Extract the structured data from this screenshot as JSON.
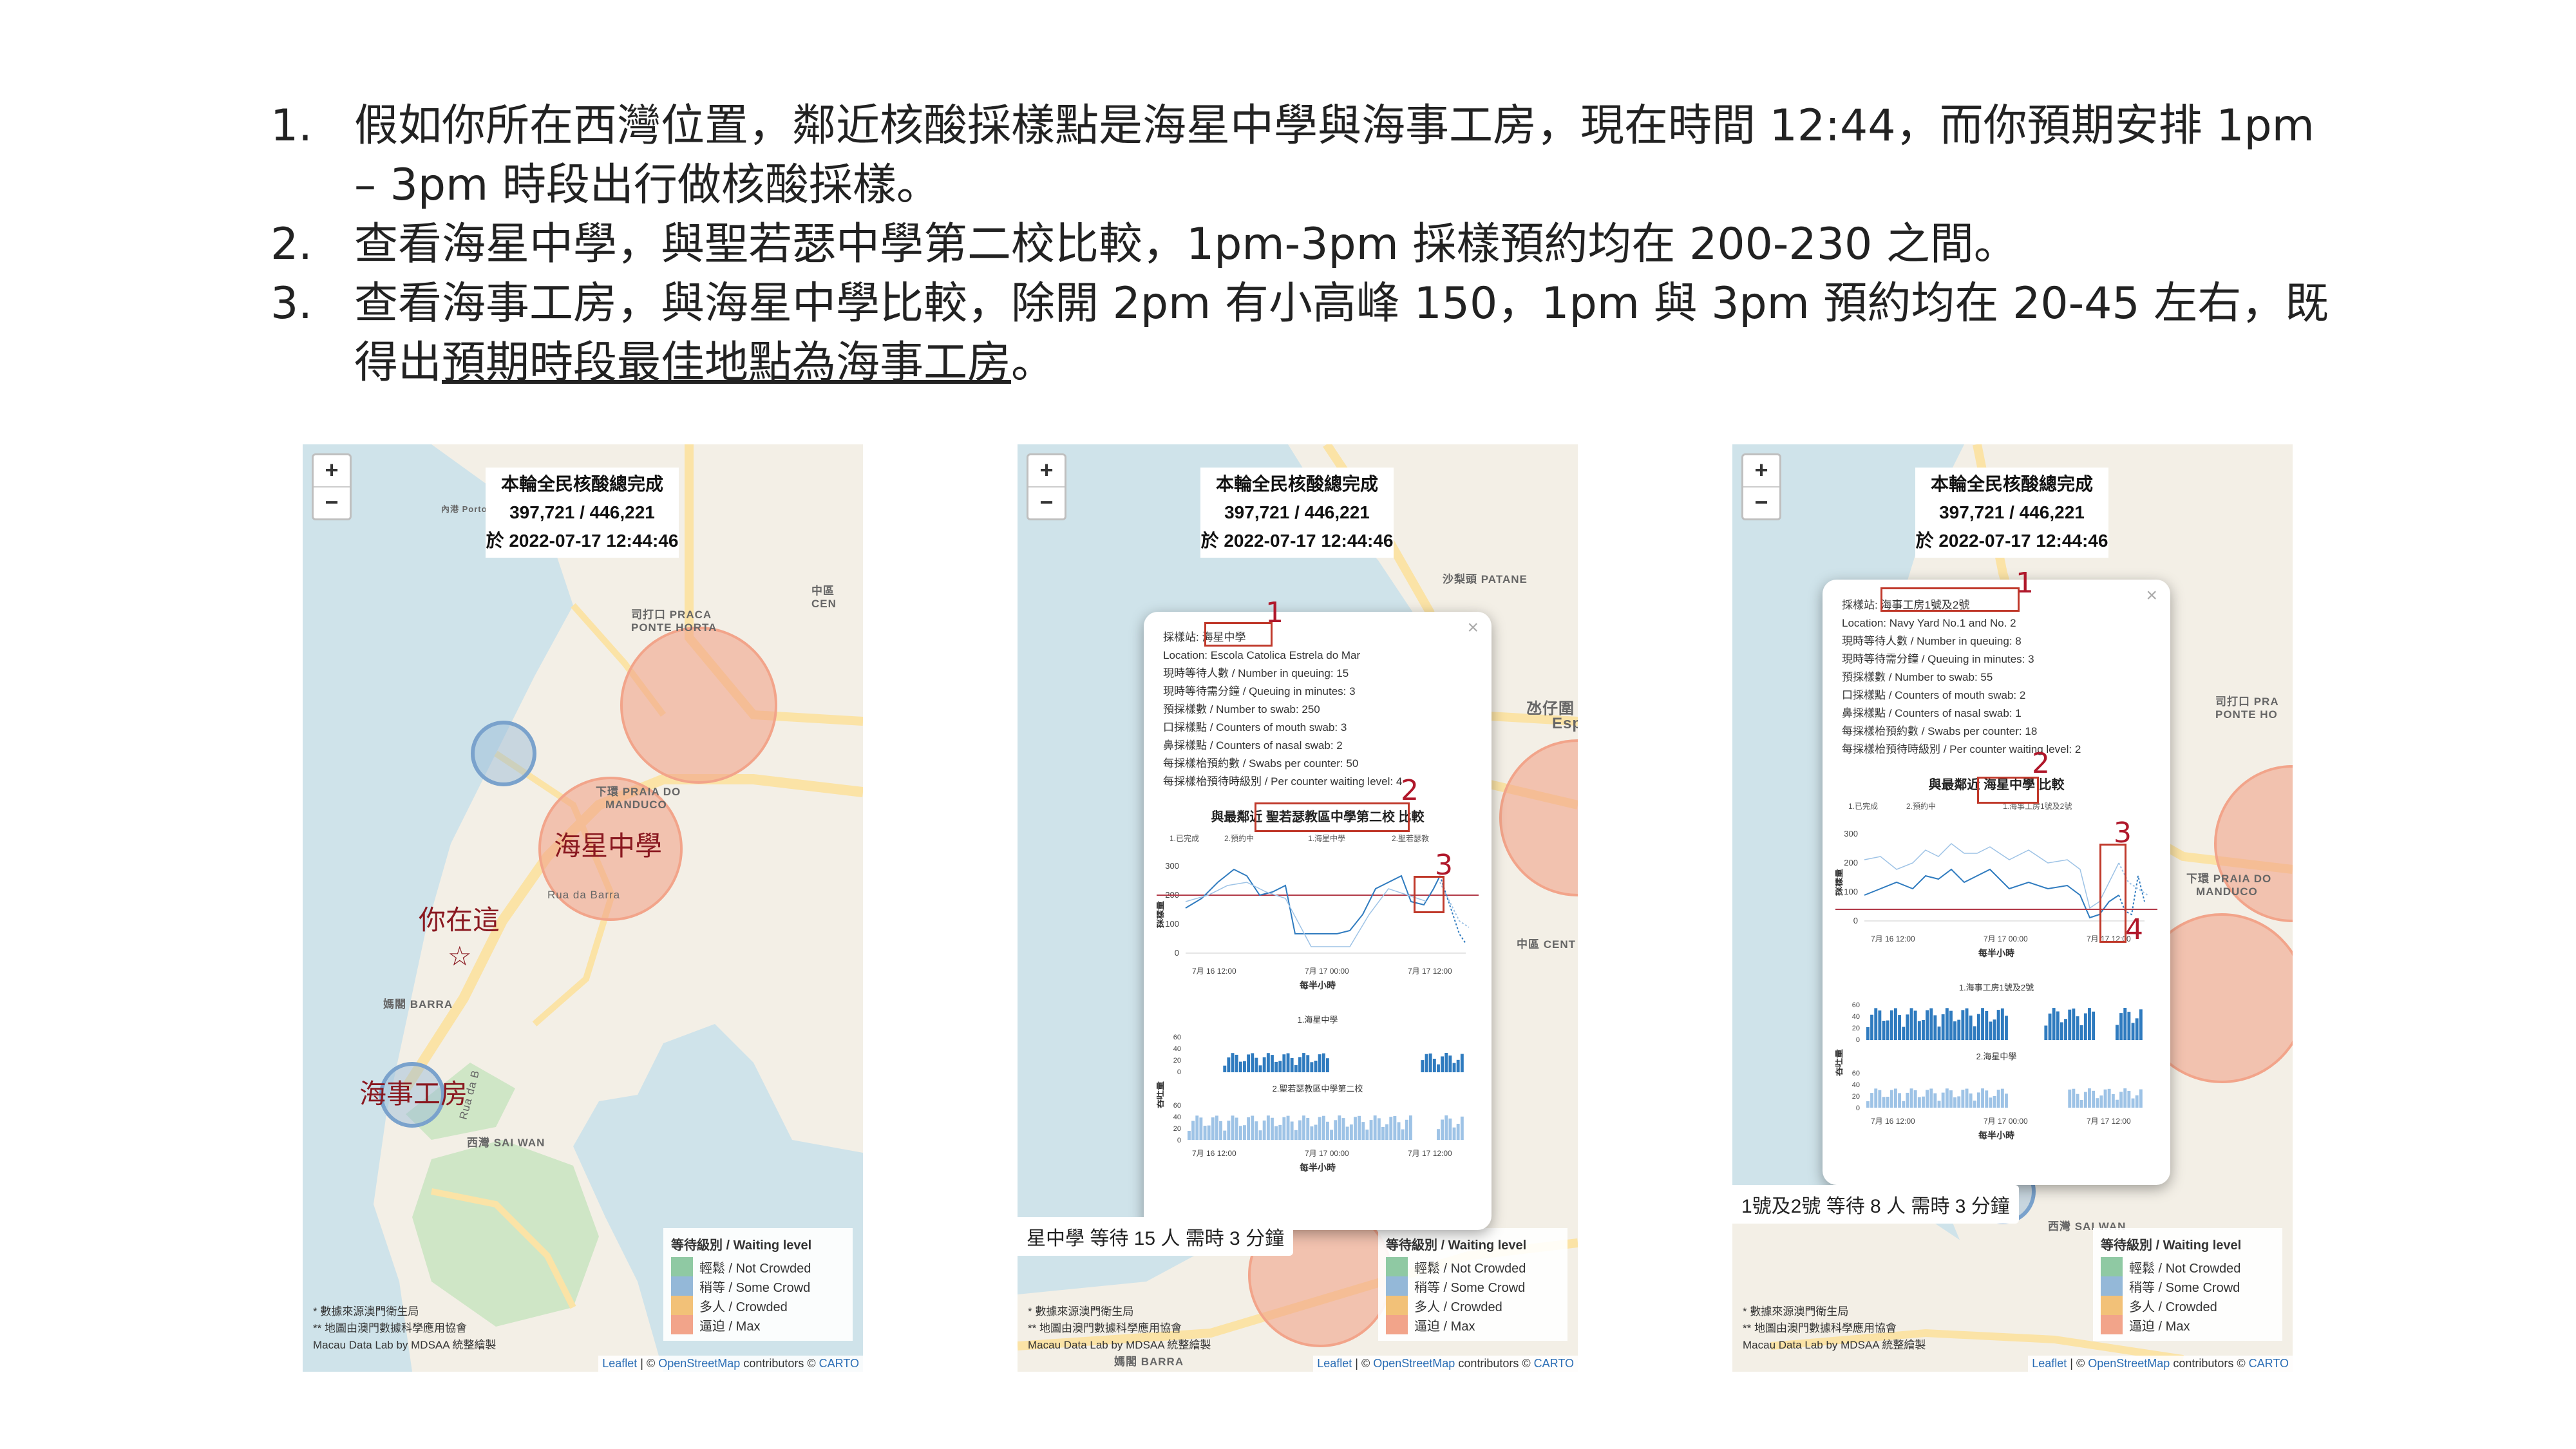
{
  "steps": [
    {
      "num": "1.",
      "text": "假如你所在西灣位置，鄰近核酸採樣點是海星中學與海事工房，現在時間 12:44，而你預期安排 1pm – 3pm 時段出行做核酸採樣。",
      "underlined": ""
    },
    {
      "num": "2.",
      "text": "查看海星中學，與聖若瑟中學第二校比較，1pm-3pm 採樣預約均在 200-230 之間。",
      "underlined": ""
    },
    {
      "num": "3.",
      "text": "查看海事工房，與海星中學比較，除開 2pm 有小高峰 150，1pm 與 3pm 預約均在 20-45 左右，既得出",
      "underlined": "預期時段最佳地點為海事工房",
      "tail": "。"
    }
  ],
  "map": {
    "zoom_in": "+",
    "zoom_out": "−",
    "total_title": "本輪全民核酸總完成",
    "total_value": "397,721 / 446,221",
    "total_time": "於 2022-07-17 12:44:46",
    "legend_title": "等待級別 / Waiting level",
    "legend_items": [
      {
        "label": "輕鬆 / Not Crowded",
        "color": "#8fc9a3"
      },
      {
        "label": "稍等 / Some Crowd",
        "color": "#94b8d8"
      },
      {
        "label": "多人 / Crowded",
        "color": "#f2c178"
      },
      {
        "label": "逼迫 / Max",
        "color": "#f2a48a"
      }
    ],
    "credits": [
      "* 數據來源澳門衛生局",
      "** 地圖由澳門數據科學應用協會",
      "Macau Data Lab by MDSAA 統整繪製"
    ],
    "attrib_leaflet": "Leaflet",
    "attrib_mid": " | © ",
    "attrib_osm": "OpenStreetMap",
    "attrib_contrib": " contributors © ",
    "attrib_carto": "CARTO",
    "colors": {
      "water": "#cfe3ea",
      "land": "#f3efe6",
      "road": "#fbe3a6",
      "green": "#cfe6c6",
      "crowded": "#f2a48a",
      "some": "#94b8d8"
    }
  },
  "panel1": {
    "labels": {
      "inner_harbour": "內港 Porto",
      "praca": "司打口 PRACA",
      "ponte": "PONTE HORTA",
      "praia": "下環 PRAIA DO",
      "manduco": "MANDUCO",
      "barra": "媽閣 BARRA",
      "saiwan": "西灣 SAI WAN",
      "centro": "中區 CEN",
      "rua": "Rua da Barra",
      "rua2": "Rua da B"
    },
    "school": "海星中學",
    "you": "你在這",
    "star": "☆",
    "navy": "海事工房"
  },
  "panel2": {
    "labels": {
      "patane": "沙梨頭 PATANE",
      "taipa": "氹仔圍",
      "esp": "Esp",
      "centro": "中區 CENT",
      "barra": "媽閣 BARRA"
    },
    "info": [
      "採樣站: 海星中學",
      "Location: Escola Catolica Estrela do Mar",
      "現時等待人數 / Number in queuing: 15",
      "現時等待需分鐘 / Queuing in minutes: 3",
      "預採樣數 / Number to swab: 250",
      "口採樣點 / Counters of mouth swab: 3",
      "鼻採樣點 / Counters of nasal swab: 2",
      "每採樣枱預約數 / Swabs per counter: 50",
      "每採樣枱預待時級別 / Per counter waiting level: 4"
    ],
    "compare_title": "與最鄰近 聖若瑟教區中學第二校 比較",
    "legend": [
      "1.已完成",
      "2.預約中",
      "1.海星中學",
      "2.聖若瑟教"
    ],
    "ylabel": "採樣量",
    "xlabel": "每半小時",
    "xticks": [
      "7月 16 12:00",
      "7月 17 00:00",
      "7月 17 12:00"
    ],
    "line_yticks": [
      "300",
      "200",
      "100",
      "0"
    ],
    "bar1_title": "1.海星中學",
    "bar2_title": "2.聖若瑟教區中學第二校",
    "bar_ylabel": "吞吐量",
    "bar_yticks": [
      "60",
      "40",
      "20",
      "0"
    ],
    "tooltip": "星中學 等待 15 人 需時 3 分鐘",
    "marks": [
      "1",
      "2",
      "3"
    ]
  },
  "panel3": {
    "labels": {
      "praca": "司打口 PRA",
      "ponte": "PONTE HO",
      "praia": "下環 PRAIA DO",
      "manduco": "MANDUCO",
      "saiwan": "西灣 SAI WAN"
    },
    "info": [
      "採樣站: 海事工房1號及2號",
      "Location: Navy Yard No.1 and No. 2",
      "現時等待人數 / Number in queuing: 8",
      "現時等待需分鐘 / Queuing in minutes: 3",
      "預採樣數 / Number to swab: 55",
      "口採樣點 / Counters of mouth swab: 2",
      "鼻採樣點 / Counters of nasal swab: 1",
      "每採樣枱預約數 / Swabs per counter: 18",
      "每採樣枱預待時級別 / Per counter waiting level: 2"
    ],
    "compare_title": "與最鄰近 海星中學 比較",
    "legend": [
      "1.已完成",
      "2.預約中",
      "1.海事工房1號及2號"
    ],
    "ylabel": "採樣量",
    "xlabel": "每半小時",
    "xticks": [
      "7月 16 12:00",
      "7月 17 00:00",
      "7月 17 12:00"
    ],
    "line_yticks": [
      "300",
      "200",
      "100",
      "0"
    ],
    "bar1_title": "1.海事工房1號及2號",
    "bar2_title": "2.海星中學",
    "bar_ylabel": "吞吐量",
    "bar_yticks": [
      "60",
      "40",
      "20",
      "0"
    ],
    "tooltip": "1號及2號 等待 8 人 需時 3 分鐘",
    "marks": [
      "1",
      "2",
      "3",
      "4"
    ]
  }
}
